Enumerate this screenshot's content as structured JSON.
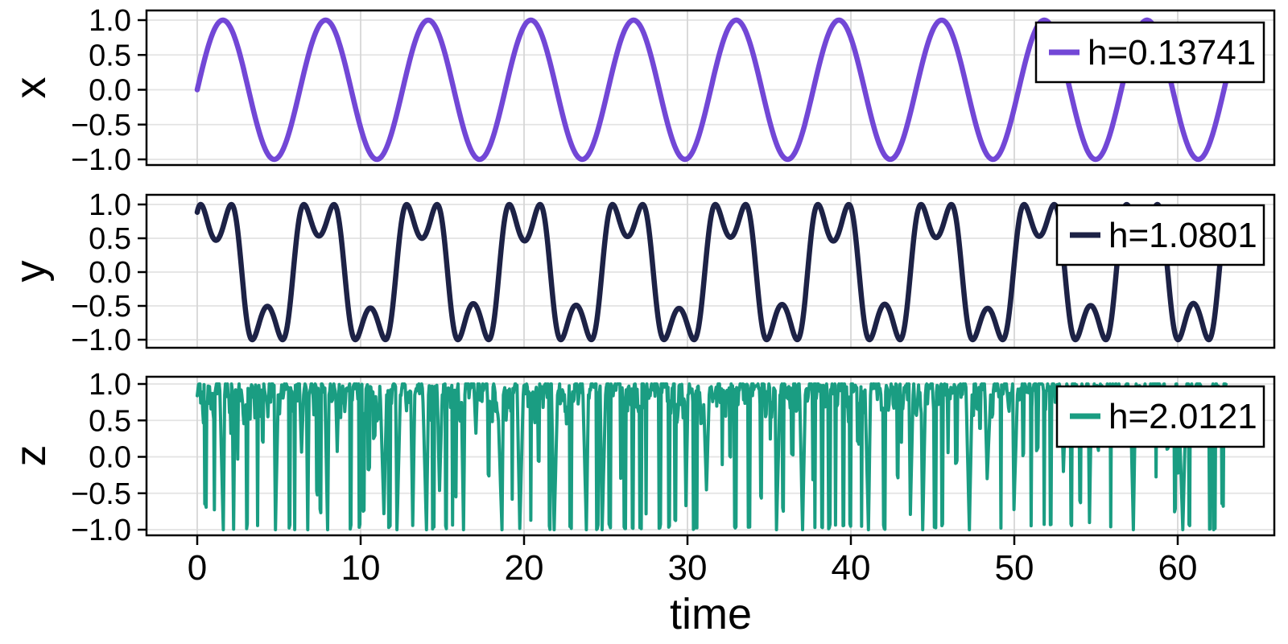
{
  "figure": {
    "background": "#ffffff",
    "spine_color": "#000000",
    "grid_color_h": "#e3e3e3",
    "grid_color_v": "#d6d6d6",
    "tick_color": "#000000"
  },
  "axis": {
    "xlabel": "time",
    "xtick_values": [
      0,
      10,
      20,
      30,
      40,
      50,
      60
    ],
    "xtick_labels": [
      "0",
      "10",
      "20",
      "30",
      "40",
      "50",
      "60"
    ],
    "ytick_values": [
      1.0,
      0.5,
      0.0,
      -0.5,
      -1.0
    ],
    "ytick_labels": [
      "1.0",
      "0.5",
      "0.0",
      "−0.5",
      "−1.0"
    ],
    "xlim": [
      -3.1,
      65.9
    ],
    "ylim": [
      -1.14,
      1.14
    ],
    "t_range": [
      0,
      63
    ]
  },
  "chart_data": [
    {
      "type": "line",
      "panel": "top",
      "ylabel": "x",
      "legend_label": "h=0.13741",
      "legend_position": "top-right",
      "color": "#7247d6",
      "stroke_width": 6.5,
      "ylim": [
        -1.14,
        1.14
      ],
      "signal": {
        "kind": "sine",
        "formula": "x(t) = sin(t), t in [0, 63]",
        "amplitude": 1.0,
        "omega": 1.0,
        "phase": 0.0,
        "n_points": 800
      }
    },
    {
      "type": "line",
      "panel": "middle",
      "ylabel": "y",
      "legend_label": "h=1.0801",
      "legend_position": "top-right",
      "color": "#1d2246",
      "stroke_width": 6.5,
      "ylim": [
        -1.14,
        1.14
      ],
      "signal": {
        "kind": "pendulum_libration",
        "formula": "y(t) = sin(theta0 * sin(omega*t + phase)), t in [0, 63]",
        "theta0": 2.62,
        "omega": 0.998,
        "phase": 0.42,
        "theta0_mod_amp": 0.045,
        "theta0_mod_omega": 0.31,
        "theta0_mod_phase": 2.0,
        "n_points": 1600
      }
    },
    {
      "type": "line",
      "panel": "bottom",
      "ylabel": "z",
      "legend_label": "h=2.0121",
      "legend_position": "top-right",
      "color": "#1a9d82",
      "stroke_width": 4,
      "ylim": [
        -1.14,
        1.14
      ],
      "signal": {
        "kind": "chaotic",
        "formula": "z(t) = chaotic bounded signal clipped to [-1, 1], dwelling near +1 with dense downward spikes",
        "seed": 20121,
        "clip": [
          -1,
          1
        ],
        "n_points": 1500
      }
    }
  ]
}
